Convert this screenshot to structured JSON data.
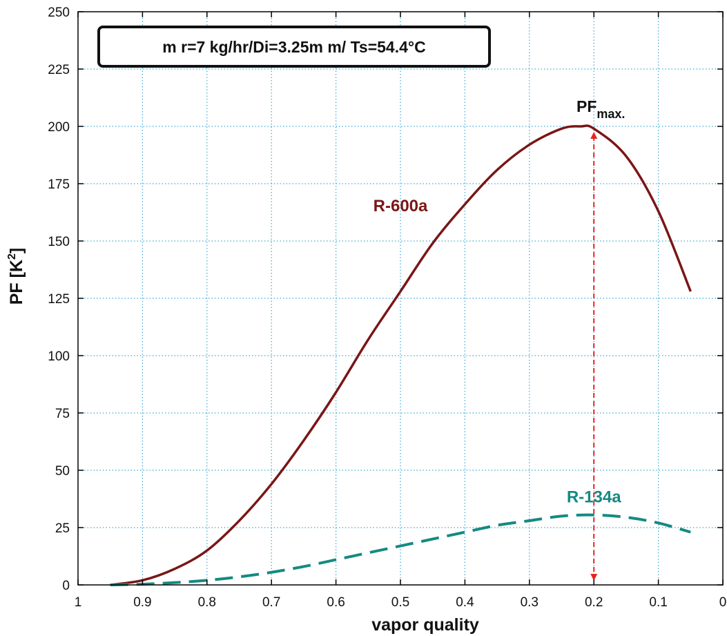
{
  "chart_data": {
    "type": "line",
    "title": "",
    "xlabel": "vapor quality",
    "ylabel_main": "PF  [K",
    "ylabel_sup": "2",
    "ylabel_close": "]",
    "xlim": [
      1,
      0
    ],
    "x_reversed": true,
    "ylim": [
      0,
      250
    ],
    "grid": true,
    "x_ticks": [
      1,
      0.9,
      0.8,
      0.7,
      0.6,
      0.5,
      0.4,
      0.3,
      0.2,
      0.1,
      0
    ],
    "x_tick_labels": [
      "1",
      "0.9",
      "0.8",
      "0.7",
      "0.6",
      "0.5",
      "0.4",
      "0.3",
      "0.2",
      "0.1",
      "0"
    ],
    "y_ticks": [
      0,
      25,
      50,
      75,
      100,
      125,
      150,
      175,
      200,
      225,
      250
    ],
    "y_tick_labels": [
      "0",
      "25",
      "50",
      "75",
      "100",
      "125",
      "150",
      "175",
      "200",
      "225",
      "250"
    ],
    "condition_box": "m r=7 kg/hr/Di=3.25m m/ Ts=54.4°C",
    "series": [
      {
        "name": "R-600a",
        "color": "#7a1616",
        "style": "solid",
        "x": [
          0.95,
          0.9,
          0.85,
          0.8,
          0.75,
          0.7,
          0.65,
          0.6,
          0.55,
          0.5,
          0.45,
          0.4,
          0.35,
          0.3,
          0.25,
          0.22,
          0.2,
          0.15,
          0.1,
          0.05
        ],
        "values": [
          0,
          2,
          7,
          15,
          28,
          44,
          63,
          84,
          107,
          128,
          149,
          166,
          181,
          192,
          199,
          200,
          199,
          187,
          163,
          128
        ]
      },
      {
        "name": "R-134a",
        "color": "#148a82",
        "style": "dashed",
        "x": [
          0.95,
          0.9,
          0.85,
          0.8,
          0.75,
          0.7,
          0.65,
          0.6,
          0.55,
          0.5,
          0.45,
          0.4,
          0.35,
          0.3,
          0.25,
          0.2,
          0.15,
          0.1,
          0.05
        ],
        "values": [
          0,
          0.3,
          1,
          2,
          3.5,
          5.5,
          8,
          11,
          14,
          17,
          20,
          23,
          26,
          28,
          30,
          30.5,
          29.5,
          27,
          23
        ]
      }
    ],
    "series_labels": [
      {
        "text": "R-600a",
        "x": 0.5,
        "y": 163,
        "color": "#7a1616"
      },
      {
        "text": "R-134a",
        "x": 0.2,
        "y": 36,
        "color": "#148a82"
      }
    ],
    "annotation": {
      "text_main": "PF",
      "text_sub": "max.",
      "x": 0.2,
      "y_from": 0,
      "y_to": 200,
      "color": "#e8241f"
    }
  }
}
